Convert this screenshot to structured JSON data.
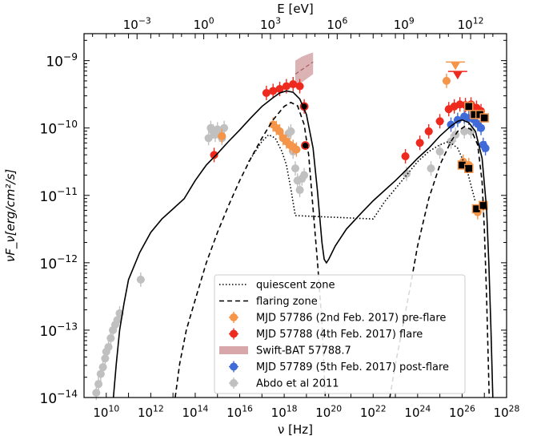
{
  "chart_data": {
    "type": "scatter",
    "title": "",
    "xlabel": "ν [Hz]",
    "ylabel": "νF_ν[erg/cm²/s]",
    "top_xlabel": "E [eV]",
    "xscale": "log",
    "yscale": "log",
    "xlim_log10": [
      9,
      28
    ],
    "ylim_log10": [
      -14,
      -8.6
    ],
    "x_ticks": [
      {
        "exp": 10,
        "label_base": "10",
        "label_exp": "10"
      },
      {
        "exp": 12,
        "label_base": "10",
        "label_exp": "12"
      },
      {
        "exp": 14,
        "label_base": "10",
        "label_exp": "14"
      },
      {
        "exp": 16,
        "label_base": "10",
        "label_exp": "16"
      },
      {
        "exp": 18,
        "label_base": "10",
        "label_exp": "18"
      },
      {
        "exp": 20,
        "label_base": "10",
        "label_exp": "20"
      },
      {
        "exp": 22,
        "label_base": "10",
        "label_exp": "22"
      },
      {
        "exp": 24,
        "label_base": "10",
        "label_exp": "24"
      },
      {
        "exp": 26,
        "label_base": "10",
        "label_exp": "26"
      },
      {
        "exp": 28,
        "label_base": "10",
        "label_exp": "28"
      }
    ],
    "y_ticks": [
      {
        "exp": -9,
        "label_base": "10",
        "label_exp": "−9"
      },
      {
        "exp": -10,
        "label_base": "10",
        "label_exp": "−10"
      },
      {
        "exp": -11,
        "label_base": "10",
        "label_exp": "−11"
      },
      {
        "exp": -12,
        "label_base": "10",
        "label_exp": "−12"
      },
      {
        "exp": -13,
        "label_base": "10",
        "label_exp": "−13"
      },
      {
        "exp": -14,
        "label_base": "10",
        "label_exp": "−14"
      }
    ],
    "top_ticks": [
      {
        "ev_exp": -3,
        "label_base": "10",
        "label_exp": "−3"
      },
      {
        "ev_exp": 0,
        "label_base": "10",
        "label_exp": "0"
      },
      {
        "ev_exp": 3,
        "label_base": "10",
        "label_exp": "3"
      },
      {
        "ev_exp": 6,
        "label_base": "10",
        "label_exp": "6"
      },
      {
        "ev_exp": 9,
        "label_base": "10",
        "label_exp": "9"
      },
      {
        "ev_exp": 12,
        "label_base": "10",
        "label_exp": "12"
      }
    ],
    "legend_position": "bottom-center",
    "colors": {
      "pre_flare": "#f5954a",
      "flare": "#ee2a1e",
      "swift": "#c98a8e",
      "post_flare": "#3f6ad8",
      "abdo": "#c0c0c0"
    },
    "legend": [
      {
        "key": "quiescent",
        "label": "quiescent zone",
        "style": "dotted"
      },
      {
        "key": "flaring",
        "label": "flaring zone",
        "style": "dashed"
      },
      {
        "key": "pre_flare",
        "label": "MJD 57786 (2nd Feb. 2017) pre-flare",
        "style": "errorpoint"
      },
      {
        "key": "flare",
        "label": "MJD 57788 (4th Feb. 2017) flare",
        "style": "errorpoint"
      },
      {
        "key": "swift",
        "label": "Swift-BAT 57788.7",
        "style": "band"
      },
      {
        "key": "post_flare",
        "label": "MJD 57789 (5th Feb. 2017) post-flare",
        "style": "errorpoint"
      },
      {
        "key": "abdo",
        "label": "Abdo et al 2011",
        "style": "errorpoint"
      }
    ],
    "series": [
      {
        "key": "total_model",
        "style": "solid",
        "points": [
          [
            10.32,
            -14.0
          ],
          [
            10.45,
            -13.5
          ],
          [
            10.6,
            -13.0
          ],
          [
            10.8,
            -12.6
          ],
          [
            11.0,
            -12.25
          ],
          [
            11.5,
            -11.85
          ],
          [
            12.0,
            -11.55
          ],
          [
            12.5,
            -11.35
          ],
          [
            13.0,
            -11.2
          ],
          [
            13.5,
            -11.05
          ],
          [
            14.0,
            -10.78
          ],
          [
            14.5,
            -10.55
          ],
          [
            15.0,
            -10.38
          ],
          [
            15.5,
            -10.2
          ],
          [
            16.0,
            -10.03
          ],
          [
            16.5,
            -9.85
          ],
          [
            17.0,
            -9.68
          ],
          [
            17.5,
            -9.55
          ],
          [
            17.8,
            -9.48
          ],
          [
            18.1,
            -9.45
          ],
          [
            18.4,
            -9.47
          ],
          [
            18.7,
            -9.57
          ],
          [
            19.0,
            -9.8
          ],
          [
            19.3,
            -10.3
          ],
          [
            19.5,
            -10.95
          ],
          [
            19.7,
            -11.7
          ],
          [
            19.8,
            -11.95
          ],
          [
            19.9,
            -12.0
          ],
          [
            20.0,
            -11.95
          ],
          [
            20.3,
            -11.75
          ],
          [
            20.8,
            -11.5
          ],
          [
            21.5,
            -11.25
          ],
          [
            22.0,
            -11.08
          ],
          [
            22.5,
            -10.93
          ],
          [
            23.0,
            -10.78
          ],
          [
            23.5,
            -10.62
          ],
          [
            24.0,
            -10.45
          ],
          [
            24.5,
            -10.3
          ],
          [
            25.0,
            -10.12
          ],
          [
            25.5,
            -9.97
          ],
          [
            25.8,
            -9.9
          ],
          [
            26.0,
            -9.88
          ],
          [
            26.3,
            -9.92
          ],
          [
            26.6,
            -10.05
          ],
          [
            26.9,
            -10.45
          ],
          [
            27.1,
            -11.2
          ],
          [
            27.2,
            -12.0
          ],
          [
            27.3,
            -13.0
          ],
          [
            27.38,
            -14.0
          ]
        ]
      },
      {
        "key": "quiescent",
        "style": "dotted",
        "points": [
          [
            16.4,
            -10.5
          ],
          [
            16.7,
            -10.35
          ],
          [
            17.0,
            -10.2
          ],
          [
            17.3,
            -10.1
          ],
          [
            17.6,
            -10.15
          ],
          [
            17.9,
            -10.35
          ],
          [
            18.1,
            -10.55
          ],
          [
            18.3,
            -10.9
          ],
          [
            18.5,
            -11.3
          ],
          [
            22.0,
            -11.35
          ],
          [
            22.5,
            -11.1
          ],
          [
            23.0,
            -10.9
          ],
          [
            23.5,
            -10.7
          ],
          [
            24.0,
            -10.5
          ],
          [
            24.5,
            -10.35
          ],
          [
            25.0,
            -10.25
          ],
          [
            25.4,
            -10.2
          ],
          [
            25.8,
            -10.3
          ],
          [
            26.2,
            -10.6
          ],
          [
            26.6,
            -11.1
          ]
        ]
      },
      {
        "key": "flaring",
        "style": "dashed",
        "points": [
          [
            13.1,
            -14.0
          ],
          [
            13.3,
            -13.5
          ],
          [
            13.6,
            -13.0
          ],
          [
            14.0,
            -12.55
          ],
          [
            14.5,
            -12.0
          ],
          [
            15.0,
            -11.55
          ],
          [
            15.5,
            -11.15
          ],
          [
            16.0,
            -10.78
          ],
          [
            16.5,
            -10.45
          ],
          [
            17.0,
            -10.15
          ],
          [
            17.5,
            -9.88
          ],
          [
            18.0,
            -9.68
          ],
          [
            18.3,
            -9.62
          ],
          [
            18.6,
            -9.67
          ],
          [
            18.9,
            -9.95
          ],
          [
            19.1,
            -10.4
          ],
          [
            19.3,
            -11.2
          ],
          [
            19.5,
            -12.0
          ],
          [
            19.7,
            -12.9
          ],
          [
            19.85,
            -14.0
          ],
          null,
          [
            22.75,
            -14.0
          ],
          [
            23.0,
            -13.5
          ],
          [
            23.3,
            -13.0
          ],
          [
            23.7,
            -12.3
          ],
          [
            24.0,
            -11.75
          ],
          [
            24.5,
            -11.05
          ],
          [
            25.0,
            -10.55
          ],
          [
            25.5,
            -10.2
          ],
          [
            25.8,
            -10.05
          ],
          [
            26.1,
            -9.98
          ],
          [
            26.4,
            -10.02
          ],
          [
            26.7,
            -10.25
          ],
          [
            26.9,
            -10.8
          ],
          [
            27.0,
            -11.5
          ],
          [
            27.1,
            -12.5
          ],
          [
            27.22,
            -14.0
          ]
        ]
      },
      {
        "key": "swift",
        "style": "band",
        "upper": [
          [
            18.5,
            -9.0
          ],
          [
            18.8,
            -8.94
          ],
          [
            19.1,
            -8.9
          ],
          [
            19.3,
            -8.88
          ]
        ],
        "lower": [
          [
            18.5,
            -9.38
          ],
          [
            18.8,
            -9.32
          ],
          [
            19.1,
            -9.25
          ],
          [
            19.3,
            -9.2
          ]
        ],
        "center": [
          [
            18.5,
            -9.2
          ],
          [
            19.3,
            -9.02
          ]
        ]
      },
      {
        "key": "abdo",
        "style": "errorpoint",
        "points": [
          [
            9.55,
            -13.93
          ],
          [
            9.65,
            -13.8
          ],
          [
            9.75,
            -13.65
          ],
          [
            9.85,
            -13.55
          ],
          [
            9.95,
            -13.42
          ],
          [
            10.0,
            -13.32
          ],
          [
            10.1,
            -13.25
          ],
          [
            10.2,
            -13.12
          ],
          [
            10.3,
            -13.0
          ],
          [
            10.4,
            -12.92
          ],
          [
            10.5,
            -12.85
          ],
          [
            10.6,
            -12.75
          ],
          [
            11.55,
            -12.25
          ],
          [
            14.6,
            -10.15
          ],
          [
            14.7,
            -10.0
          ],
          [
            14.8,
            -10.05
          ],
          [
            14.9,
            -10.1
          ],
          [
            15.0,
            -10.02
          ],
          [
            15.1,
            -10.1
          ],
          [
            15.2,
            -10.15
          ],
          [
            15.3,
            -10.0
          ],
          [
            18.2,
            -10.08
          ],
          [
            18.3,
            -10.05
          ],
          [
            18.4,
            -10.35
          ],
          [
            18.5,
            -10.6
          ],
          [
            18.6,
            -10.78
          ],
          [
            18.7,
            -10.92
          ],
          [
            18.8,
            -10.75
          ],
          [
            18.9,
            -10.7
          ],
          [
            23.5,
            -10.68
          ],
          [
            24.6,
            -10.6
          ],
          [
            25.0,
            -10.35
          ],
          [
            25.5,
            -10.2
          ],
          [
            25.7,
            -10.1
          ],
          [
            26.1,
            -10.05
          ],
          [
            26.4,
            -10.05
          ]
        ]
      },
      {
        "key": "pre_flare",
        "style": "errorpoint",
        "points": [
          [
            15.2,
            -10.12
          ],
          [
            17.5,
            -9.95
          ],
          [
            17.65,
            -10.0
          ],
          [
            17.8,
            -10.05
          ],
          [
            17.95,
            -10.15
          ],
          [
            18.1,
            -10.2
          ],
          [
            18.25,
            -10.25
          ],
          [
            18.4,
            -10.28
          ],
          [
            18.55,
            -10.32
          ],
          [
            25.3,
            -9.3
          ],
          [
            26.05,
            -10.5
          ],
          [
            26.3,
            -10.55
          ],
          [
            26.7,
            -11.25
          ],
          [
            26.95,
            -11.15
          ]
        ],
        "upper_limits": [
          [
            25.7,
            -9.08
          ]
        ]
      },
      {
        "key": "flare",
        "style": "errorpoint",
        "points": [
          [
            14.85,
            -10.4
          ],
          [
            17.2,
            -9.48
          ],
          [
            17.5,
            -9.45
          ],
          [
            17.8,
            -9.42
          ],
          [
            18.1,
            -9.38
          ],
          [
            18.4,
            -9.35
          ],
          [
            18.7,
            -9.38
          ],
          [
            18.9,
            -9.68
          ],
          [
            23.45,
            -10.42
          ],
          [
            24.1,
            -10.22
          ],
          [
            24.5,
            -10.05
          ],
          [
            25.0,
            -9.9
          ],
          [
            25.4,
            -9.72
          ],
          [
            25.65,
            -9.68
          ],
          [
            25.9,
            -9.65
          ],
          [
            26.15,
            -9.66
          ],
          [
            26.4,
            -9.65
          ],
          [
            26.65,
            -9.7
          ],
          [
            26.85,
            -9.75
          ]
        ],
        "upper_limits": [
          [
            25.8,
            -9.22
          ]
        ]
      },
      {
        "key": "post_flare",
        "style": "errorpoint",
        "points": [
          [
            25.5,
            -9.95
          ],
          [
            25.8,
            -9.88
          ],
          [
            26.1,
            -9.83
          ],
          [
            26.3,
            -9.85
          ],
          [
            26.5,
            -9.87
          ],
          [
            26.7,
            -9.94
          ],
          [
            26.85,
            -10.0
          ],
          [
            26.95,
            -10.25
          ],
          [
            27.05,
            -10.3
          ]
        ]
      },
      {
        "key": "black_squares",
        "style": "square",
        "points": [
          [
            26.3,
            -9.68
          ],
          [
            26.55,
            -9.8
          ],
          [
            26.8,
            -9.8
          ],
          [
            27.0,
            -9.85
          ],
          [
            26.0,
            -10.55
          ],
          [
            26.3,
            -10.6
          ],
          [
            26.65,
            -11.2
          ],
          [
            26.95,
            -11.15
          ]
        ]
      },
      {
        "key": "black_dots",
        "style": "dot",
        "points": [
          [
            18.9,
            -9.68
          ],
          [
            18.95,
            -10.26
          ]
        ]
      }
    ]
  }
}
